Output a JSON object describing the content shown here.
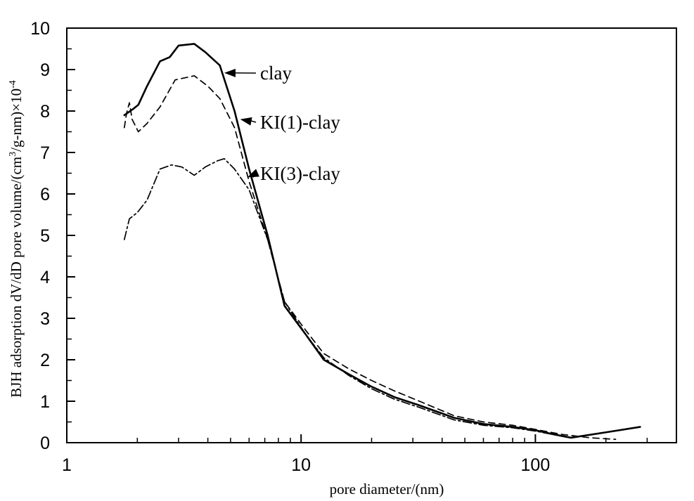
{
  "chart_data": {
    "type": "line",
    "xlabel": "pore diameter/(nm)",
    "ylabel": "BJH adsorption dV/dD pore volume/(cm",
    "ylabel_superscript_1": "3",
    "ylabel_middle": "/g-nm)×10",
    "ylabel_superscript_2": "-4",
    "xscale": "log",
    "xlim": [
      1,
      400
    ],
    "ylim": [
      0,
      10
    ],
    "x_tick_labels": [
      "1",
      "10",
      "100"
    ],
    "y_tick_labels": [
      "0",
      "1",
      "2",
      "3",
      "4",
      "5",
      "6",
      "7",
      "8",
      "9",
      "10"
    ],
    "grid": false,
    "series": [
      {
        "name": "clay",
        "line_style": "solid",
        "x": [
          1.76,
          1.92,
          2.02,
          2.2,
          2.5,
          2.75,
          3.0,
          3.5,
          3.9,
          4.5,
          5.2,
          6.0,
          7.2,
          8.5,
          10.5,
          12.5,
          16,
          20,
          25,
          32,
          45,
          60,
          80,
          100,
          120,
          142,
          200,
          280
        ],
        "y": [
          7.9,
          8.05,
          8.15,
          8.6,
          9.2,
          9.3,
          9.58,
          9.62,
          9.42,
          9.1,
          8.0,
          6.6,
          5.0,
          3.3,
          2.6,
          2.0,
          1.65,
          1.35,
          1.1,
          0.9,
          0.6,
          0.45,
          0.38,
          0.3,
          0.2,
          0.12,
          0.25,
          0.38
        ]
      },
      {
        "name": "KI(1)-clay",
        "line_style": "dashed",
        "x": [
          1.76,
          1.8,
          1.85,
          1.9,
          2.02,
          2.2,
          2.5,
          2.9,
          3.5,
          4.0,
          4.5,
          5.2,
          6.0,
          7.2,
          8.5,
          10.5,
          12.5,
          16,
          20,
          25,
          32,
          45,
          60,
          80,
          100,
          130,
          170,
          220
        ],
        "y": [
          7.6,
          7.95,
          8.2,
          7.8,
          7.5,
          7.7,
          8.1,
          8.75,
          8.85,
          8.6,
          8.3,
          7.6,
          6.3,
          4.9,
          3.4,
          2.7,
          2.15,
          1.78,
          1.5,
          1.25,
          1.0,
          0.65,
          0.5,
          0.42,
          0.32,
          0.2,
          0.12,
          0.08
        ]
      },
      {
        "name": "KI(3)-clay",
        "line_style": "dash-dot",
        "x": [
          1.76,
          1.85,
          2.0,
          2.2,
          2.5,
          2.8,
          3.1,
          3.5,
          3.9,
          4.4,
          4.7,
          5.2,
          6.0,
          7.2,
          8.5,
          10.5,
          12.5,
          16,
          20,
          25,
          32,
          45,
          60,
          80,
          100,
          140
        ],
        "y": [
          4.9,
          5.4,
          5.55,
          5.85,
          6.6,
          6.7,
          6.65,
          6.45,
          6.65,
          6.8,
          6.85,
          6.6,
          6.1,
          4.9,
          3.4,
          2.6,
          2.05,
          1.62,
          1.3,
          1.05,
          0.85,
          0.55,
          0.42,
          0.36,
          0.28,
          0.12
        ]
      }
    ],
    "annotations": [
      {
        "text": "clay",
        "series": "clay",
        "point_x": 4.7,
        "point_y": 8.92
      },
      {
        "text": "KI(1)-clay",
        "series": "KI(1)-clay",
        "point_x": 5.5,
        "point_y": 7.8
      },
      {
        "text": "KI(3)-clay",
        "series": "KI(3)-clay",
        "point_x": 5.9,
        "point_y": 6.4
      }
    ]
  }
}
